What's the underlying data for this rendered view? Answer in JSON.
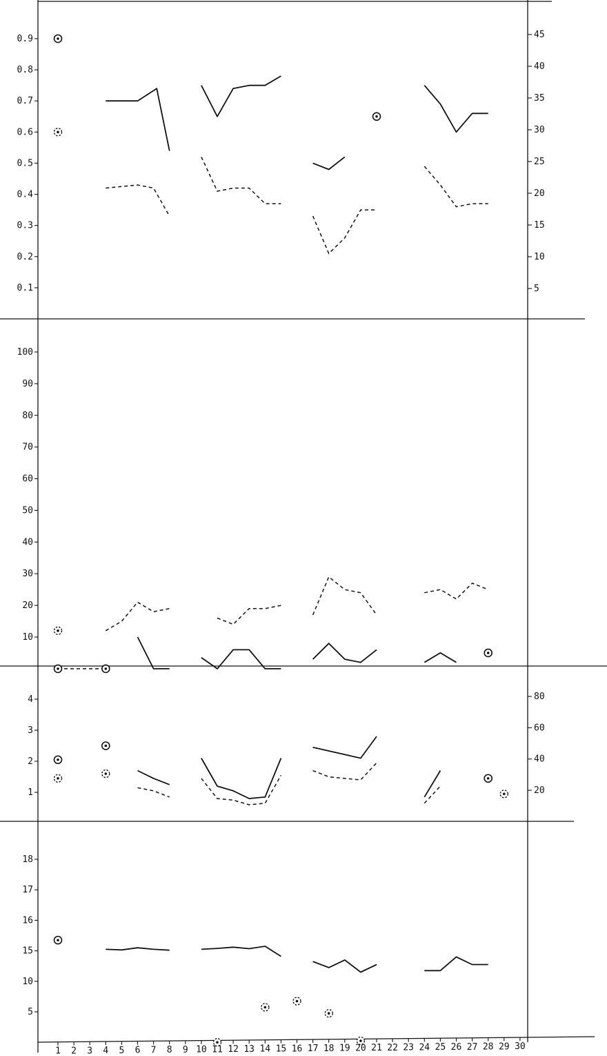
{
  "chart_data": [
    {
      "type": "line",
      "panel": 1,
      "x": {
        "ticks": []
      },
      "y_left": {
        "ylim": [
          0,
          1.0
        ],
        "ticks": [
          0.1,
          0.2,
          0.3,
          0.4,
          0.5,
          0.6,
          0.7,
          0.8,
          0.9
        ],
        "tick_labels": [
          "0.1",
          "0.2",
          "0.3",
          "0.4",
          "0.5",
          "0.6",
          "0.7",
          "0.8",
          "0.9"
        ]
      },
      "y_right": {
        "ylim": [
          0,
          50
        ],
        "ticks": [
          5,
          10,
          15,
          20,
          25,
          30,
          35,
          40,
          45
        ],
        "tick_labels": [
          "5",
          "10",
          "15",
          "20",
          "25",
          "30",
          "35",
          "40",
          "45"
        ]
      },
      "series": [
        {
          "style": "solid",
          "axis": "left",
          "segments": [
            [
              [
                4,
                0.7
              ],
              [
                6,
                0.7
              ],
              [
                7.2,
                0.74
              ],
              [
                8,
                0.54
              ]
            ],
            [
              [
                10,
                0.75
              ],
              [
                11,
                0.65
              ],
              [
                12,
                0.74
              ],
              [
                13,
                0.75
              ],
              [
                14,
                0.75
              ],
              [
                15,
                0.78
              ]
            ],
            [
              [
                17,
                0.5
              ],
              [
                18,
                0.48
              ],
              [
                19,
                0.52
              ]
            ],
            [
              [
                24,
                0.75
              ],
              [
                25,
                0.69
              ],
              [
                26,
                0.6
              ],
              [
                27,
                0.66
              ],
              [
                28,
                0.66
              ]
            ]
          ]
        },
        {
          "style": "dashed",
          "axis": "left",
          "segments": [
            [
              [
                4,
                0.42
              ],
              [
                6,
                0.43
              ],
              [
                7,
                0.42
              ],
              [
                8,
                0.33
              ]
            ],
            [
              [
                10,
                0.52
              ],
              [
                11,
                0.41
              ],
              [
                12,
                0.42
              ],
              [
                13,
                0.42
              ],
              [
                14,
                0.37
              ],
              [
                15,
                0.37
              ]
            ],
            [
              [
                17,
                0.33
              ],
              [
                18,
                0.21
              ],
              [
                19,
                0.26
              ],
              [
                20,
                0.35
              ],
              [
                21,
                0.35
              ]
            ],
            [
              [
                24,
                0.49
              ],
              [
                25,
                0.43
              ],
              [
                26,
                0.36
              ],
              [
                27,
                0.37
              ],
              [
                28,
                0.37
              ]
            ]
          ]
        }
      ],
      "points": [
        {
          "x": 1,
          "y": 0.9,
          "axis": "left",
          "marker": "solid-ring"
        },
        {
          "x": 1,
          "y": 0.6,
          "axis": "left",
          "marker": "dashed-ring"
        },
        {
          "x": 21,
          "y": 0.65,
          "axis": "left",
          "marker": "solid-ring"
        }
      ]
    },
    {
      "type": "line",
      "panel": 2,
      "x": {
        "ticks": []
      },
      "y_left": {
        "ylim": [
          0,
          110
        ],
        "ticks": [
          10,
          20,
          30,
          40,
          50,
          60,
          70,
          80,
          90,
          100
        ],
        "tick_labels": [
          "10",
          "20",
          "30",
          "40",
          "50",
          "60",
          "70",
          "80",
          "90",
          "100"
        ]
      },
      "series": [
        {
          "style": "solid",
          "axis": "left",
          "segments": [
            [
              [
                6,
                10
              ],
              [
                7,
                0
              ],
              [
                8,
                0
              ]
            ],
            [
              [
                10,
                3.5
              ],
              [
                11,
                0
              ],
              [
                12,
                6
              ],
              [
                13,
                6
              ],
              [
                14,
                0
              ],
              [
                15,
                0
              ]
            ],
            [
              [
                17,
                3
              ],
              [
                18,
                8
              ],
              [
                19,
                3
              ],
              [
                20,
                2
              ],
              [
                21,
                6
              ]
            ],
            [
              [
                24,
                2
              ],
              [
                25,
                5
              ],
              [
                26,
                2
              ]
            ]
          ]
        },
        {
          "style": "dashed",
          "axis": "left",
          "segments": [
            [
              [
                4,
                12
              ],
              [
                5,
                15
              ],
              [
                6,
                21
              ],
              [
                7,
                18
              ],
              [
                8,
                19
              ]
            ],
            [
              [
                11,
                16
              ],
              [
                12,
                14
              ],
              [
                13,
                19
              ],
              [
                14,
                19
              ],
              [
                15,
                20
              ]
            ],
            [
              [
                17,
                17
              ],
              [
                18,
                29
              ],
              [
                19,
                25
              ],
              [
                20,
                24
              ],
              [
                21,
                17
              ]
            ],
            [
              [
                24,
                24
              ],
              [
                25,
                25
              ],
              [
                26,
                22
              ],
              [
                27,
                27
              ],
              [
                28,
                25
              ]
            ]
          ]
        },
        {
          "style": "dashed",
          "axis": "left",
          "segments": [
            [
              [
                1,
                0
              ],
              [
                4,
                0
              ]
            ]
          ]
        }
      ],
      "points": [
        {
          "x": 1,
          "y": 12,
          "axis": "left",
          "marker": "dashed-ring"
        },
        {
          "x": 1,
          "y": 0,
          "axis": "left",
          "marker": "solid-ring"
        },
        {
          "x": 4,
          "y": 0,
          "axis": "left",
          "marker": "solid-ring"
        },
        {
          "x": 28,
          "y": 5,
          "axis": "left",
          "marker": "solid-ring"
        }
      ]
    },
    {
      "type": "line",
      "panel": 3,
      "x": {
        "ticks": []
      },
      "y_left": {
        "ylim": [
          0,
          5
        ],
        "ticks": [
          1,
          2,
          3,
          4
        ],
        "tick_labels": [
          "1",
          "2",
          "3",
          "4"
        ]
      },
      "y_right": {
        "ylim": [
          0,
          100
        ],
        "ticks": [
          20,
          40,
          60,
          80
        ],
        "tick_labels": [
          "20",
          "40",
          "60",
          "80"
        ]
      },
      "series": [
        {
          "style": "solid",
          "axis": "left",
          "segments": [
            [
              [
                6,
                1.7
              ],
              [
                7,
                1.45
              ],
              [
                8,
                1.25
              ]
            ],
            [
              [
                10,
                2.1
              ],
              [
                11,
                1.2
              ],
              [
                12,
                1.05
              ],
              [
                13,
                0.8
              ],
              [
                14,
                0.85
              ],
              [
                15,
                2.1
              ]
            ],
            [
              [
                17,
                2.45
              ],
              [
                20,
                2.1
              ],
              [
                21,
                2.8
              ]
            ],
            [
              [
                24,
                0.85
              ],
              [
                25,
                1.7
              ]
            ]
          ]
        },
        {
          "style": "dashed",
          "axis": "left",
          "segments": [
            [
              [
                6,
                1.15
              ],
              [
                7,
                1.05
              ],
              [
                8,
                0.85
              ]
            ],
            [
              [
                10,
                1.45
              ],
              [
                11,
                0.8
              ],
              [
                12,
                0.75
              ],
              [
                13,
                0.6
              ],
              [
                14,
                0.65
              ],
              [
                15,
                1.55
              ]
            ],
            [
              [
                17,
                1.7
              ],
              [
                18,
                1.5
              ],
              [
                20,
                1.4
              ],
              [
                21,
                1.95
              ]
            ],
            [
              [
                24,
                0.65
              ],
              [
                25,
                1.2
              ]
            ]
          ]
        }
      ],
      "points": [
        {
          "x": 1,
          "y": 2.05,
          "axis": "left",
          "marker": "solid-ring"
        },
        {
          "x": 1,
          "y": 1.45,
          "axis": "left",
          "marker": "dashed-ring"
        },
        {
          "x": 4,
          "y": 2.5,
          "axis": "left",
          "marker": "solid-ring"
        },
        {
          "x": 4,
          "y": 1.6,
          "axis": "left",
          "marker": "dashed-ring"
        },
        {
          "x": 28,
          "y": 1.45,
          "axis": "left",
          "marker": "solid-ring"
        },
        {
          "x": 29,
          "y": 0.95,
          "axis": "left",
          "marker": "dashed-ring"
        }
      ]
    },
    {
      "type": "line",
      "panel": 4,
      "x": {
        "ticks": [
          1,
          2,
          3,
          4,
          5,
          6,
          7,
          8,
          9,
          10,
          11,
          12,
          13,
          14,
          15,
          16,
          17,
          18,
          19,
          20,
          21,
          22,
          23,
          24,
          25,
          26,
          27,
          28,
          29,
          30
        ],
        "tick_labels": [
          "1",
          "2",
          "3",
          "4",
          "5",
          "6",
          "7",
          "8",
          "9",
          "10",
          "11",
          "12",
          "13",
          "14",
          "15",
          "16",
          "17",
          "18",
          "19",
          "20",
          "21",
          "22",
          "23",
          "24",
          "25",
          "26",
          "27",
          "28",
          "29",
          "30"
        ]
      },
      "y_left": {
        "ylim": [
          0,
          7
        ],
        "ticks": [
          1,
          2,
          3,
          4,
          5,
          6
        ],
        "tick_labels": [
          "5",
          "10",
          "15",
          "16",
          "17",
          "18"
        ]
      },
      "series": [
        {
          "style": "solid",
          "axis": "left",
          "segments": [
            [
              [
                4,
                3.05
              ],
              [
                5,
                3.03
              ],
              [
                6,
                3.1
              ],
              [
                7,
                3.05
              ],
              [
                8,
                3.02
              ]
            ],
            [
              [
                10,
                3.05
              ],
              [
                11,
                3.08
              ],
              [
                12,
                3.12
              ],
              [
                13,
                3.07
              ],
              [
                14,
                3.15
              ],
              [
                15,
                2.82
              ]
            ],
            [
              [
                17,
                2.65
              ],
              [
                18,
                2.45
              ],
              [
                19,
                2.7
              ],
              [
                20,
                2.3
              ],
              [
                21,
                2.55
              ]
            ],
            [
              [
                24,
                2.35
              ],
              [
                25,
                2.35
              ],
              [
                26,
                2.8
              ],
              [
                27,
                2.55
              ],
              [
                28,
                2.55
              ]
            ]
          ]
        }
      ],
      "points": [
        {
          "x": 1,
          "y": 3.35,
          "axis": "left",
          "marker": "solid-ring"
        },
        {
          "x": 11,
          "y": 0.0,
          "axis": "left",
          "marker": "dashed-ring"
        },
        {
          "x": 14,
          "y": 1.15,
          "axis": "left",
          "marker": "dashed-ring"
        },
        {
          "x": 16,
          "y": 1.35,
          "axis": "left",
          "marker": "dashed-ring"
        },
        {
          "x": 18,
          "y": 0.95,
          "axis": "left",
          "marker": "dashed-ring"
        },
        {
          "x": 20,
          "y": 0.05,
          "axis": "left",
          "marker": "dashed-ring"
        }
      ]
    }
  ]
}
